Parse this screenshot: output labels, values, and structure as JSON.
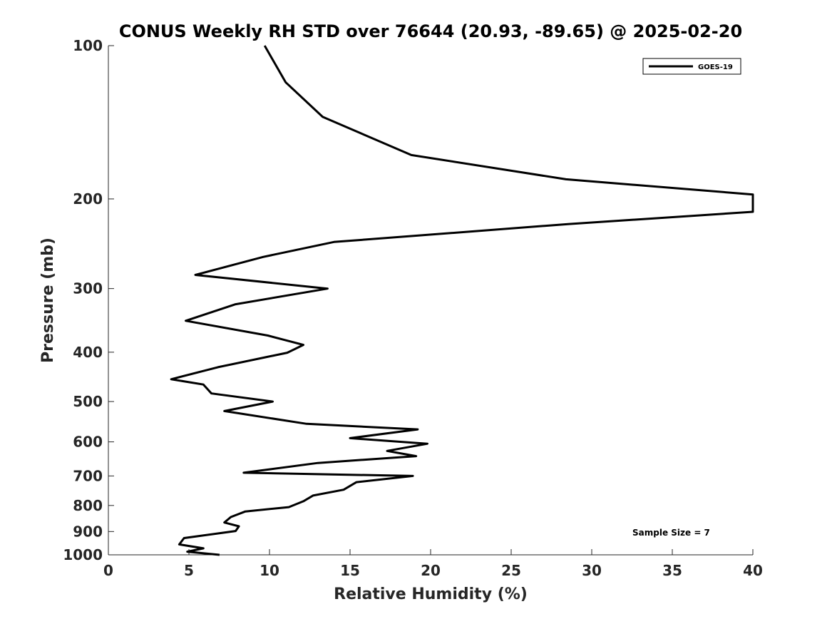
{
  "chart_data": {
    "type": "line",
    "title": "CONUS Weekly RH STD over 76644 (20.93, -89.65) @ 2025-02-20",
    "xlabel": "Relative Humidity (%)",
    "ylabel": "Pressure (mb)",
    "xlim": [
      0,
      40
    ],
    "ylim": [
      100,
      1000
    ],
    "yscale": "log",
    "y_reversed": true,
    "x_ticks": [
      0,
      5,
      10,
      15,
      20,
      25,
      30,
      35,
      40
    ],
    "x_tick_labels": [
      "0",
      "5",
      "10",
      "15",
      "20",
      "25",
      "30",
      "35",
      "40"
    ],
    "y_ticks": [
      100,
      200,
      300,
      400,
      500,
      600,
      700,
      800,
      900,
      1000
    ],
    "y_tick_labels": [
      "100",
      "200",
      "300",
      "400",
      "500",
      "600",
      "700",
      "800",
      "900",
      "1000"
    ],
    "grid": false,
    "legend_position": "top-right",
    "series": [
      {
        "name": "GOES-19",
        "color": "#000000",
        "x": [
          9.7,
          11.0,
          13.3,
          18.8,
          28.4,
          40.0,
          40.0,
          28.6,
          14.0,
          9.6,
          5.4,
          13.6,
          7.9,
          4.8,
          9.9,
          12.1,
          11.1,
          6.8,
          3.9,
          5.9,
          6.4,
          10.2,
          7.2,
          12.3,
          19.2,
          15.0,
          19.8,
          17.3,
          19.1,
          13.0,
          8.4,
          18.9,
          15.4,
          14.6,
          12.7,
          12.1,
          11.2,
          8.5,
          7.6,
          7.2,
          8.1,
          7.9,
          4.7,
          4.4,
          5.9,
          4.9,
          6.9
        ],
        "y": [
          100,
          118,
          138,
          164,
          183,
          196,
          212,
          224,
          243,
          260,
          282,
          300,
          322,
          347,
          371,
          387,
          401,
          428,
          452,
          463,
          482,
          500,
          522,
          553,
          567,
          590,
          605,
          625,
          640,
          660,
          690,
          700,
          720,
          745,
          765,
          785,
          806,
          822,
          843,
          864,
          879,
          898,
          927,
          954,
          971,
          986,
          1000
        ]
      }
    ],
    "annotation": "Sample Size = 7"
  }
}
